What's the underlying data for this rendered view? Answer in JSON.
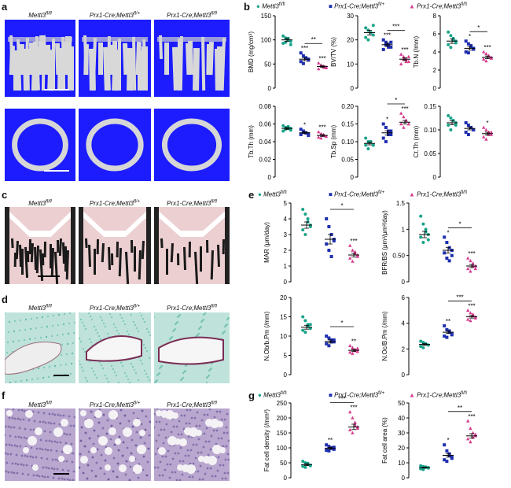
{
  "panel_letters": [
    "a",
    "b",
    "c",
    "d",
    "e",
    "f",
    "g"
  ],
  "genotypes": [
    "Mettl3fl/fl",
    "Prx1-Cre;Mettl3fl/+",
    "Prx1-Cre;Mettl3fl/fl"
  ],
  "genotypes_fmt": [
    {
      "base": "Mettl3",
      "sup": "fl/fl"
    },
    {
      "base": "Prx1-Cre;Mettl3",
      "sup": "fl/+"
    },
    {
      "base": "Prx1-Cre;Mettl3",
      "sup": "fl/fl"
    }
  ],
  "colors": {
    "g1": "#1aa38b",
    "g2": "#1f2fb0",
    "g3": "#d63b8f",
    "microct_bg": "#1c1cff",
    "bone": "#d8d8d8"
  },
  "chart_data": [
    {
      "id": "bmd",
      "panel": "b",
      "type": "scatter",
      "ylabel": "BMD (mg/cm³)",
      "yticks": [
        0,
        50,
        100,
        150
      ],
      "ylim": [
        0,
        150
      ],
      "groups": [
        {
          "values": [
            108,
            104,
            100,
            97,
            93,
            95,
            103,
            90
          ],
          "mean": 100,
          "sem": 3
        },
        {
          "values": [
            73,
            67,
            63,
            58,
            55,
            51,
            62,
            60
          ],
          "mean": 60,
          "sem": 3
        },
        {
          "values": [
            52,
            48,
            45,
            42,
            40,
            47,
            43,
            44
          ],
          "mean": 45,
          "sem": 2
        }
      ],
      "stars": [
        "",
        "***",
        "***"
      ],
      "brackets": [
        {
          "from": 1,
          "to": 2,
          "label": "**"
        }
      ]
    },
    {
      "id": "bvtv",
      "panel": "b",
      "type": "scatter",
      "ylabel": "BV/TV (%)",
      "yticks": [
        0,
        10,
        20,
        30
      ],
      "ylim": [
        0,
        30
      ],
      "groups": [
        {
          "values": [
            25,
            24,
            23,
            22,
            21,
            20,
            23,
            26
          ],
          "mean": 23,
          "sem": 1
        },
        {
          "values": [
            20,
            19,
            18,
            17,
            16,
            18,
            17,
            19
          ],
          "mean": 18,
          "sem": 0.7
        },
        {
          "values": [
            14,
            13,
            12,
            11,
            10,
            12,
            11,
            13
          ],
          "mean": 12,
          "sem": 0.6
        }
      ],
      "stars": [
        "",
        "***",
        "***"
      ],
      "brackets": [
        {
          "from": 1,
          "to": 2,
          "label": "***"
        }
      ]
    },
    {
      "id": "tbn",
      "panel": "b",
      "type": "scatter",
      "ylabel": "Tb.N (/mm)",
      "yticks": [
        0,
        2,
        4,
        6,
        8
      ],
      "ylim": [
        0,
        8
      ],
      "groups": [
        {
          "values": [
            6.2,
            5.8,
            5.5,
            5.2,
            4.8,
            4.5,
            5.3,
            5.0
          ],
          "mean": 5.2,
          "sem": 0.25
        },
        {
          "values": [
            5.2,
            4.9,
            4.6,
            4.3,
            4.0,
            3.9,
            4.7,
            4.4
          ],
          "mean": 4.4,
          "sem": 0.2
        },
        {
          "values": [
            4.0,
            3.8,
            3.6,
            3.4,
            3.2,
            3.0,
            3.5,
            3.3
          ],
          "mean": 3.4,
          "sem": 0.15
        }
      ],
      "stars": [
        "",
        "*",
        "***"
      ],
      "brackets": [
        {
          "from": 1,
          "to": 2,
          "label": "*"
        }
      ]
    },
    {
      "id": "tbth",
      "panel": "b",
      "type": "scatter",
      "ylabel": "Tb.Th (mm)",
      "yticks": [
        0,
        0.02,
        0.04,
        0.06,
        0.08
      ],
      "ylim": [
        0,
        0.08
      ],
      "groups": [
        {
          "values": [
            0.058,
            0.056,
            0.055,
            0.053,
            0.052,
            0.054,
            0.057,
            0.055
          ],
          "mean": 0.055,
          "sem": 0.001
        },
        {
          "values": [
            0.054,
            0.052,
            0.05,
            0.049,
            0.048,
            0.051,
            0.05,
            0.047
          ],
          "mean": 0.05,
          "sem": 0.001
        },
        {
          "values": [
            0.051,
            0.049,
            0.047,
            0.046,
            0.045,
            0.044,
            0.048,
            0.046
          ],
          "mean": 0.047,
          "sem": 0.001
        }
      ],
      "stars": [
        "",
        "*",
        "***"
      ],
      "brackets": []
    },
    {
      "id": "tbsp",
      "panel": "b",
      "type": "scatter",
      "ylabel": "Tb.Sp (mm)",
      "yticks": [
        0,
        0.05,
        0.1,
        0.15,
        0.2
      ],
      "ylim": [
        0,
        0.2
      ],
      "groups": [
        {
          "values": [
            0.11,
            0.1,
            0.1,
            0.09,
            0.09,
            0.08,
            0.1,
            0.09
          ],
          "mean": 0.095,
          "sem": 0.004
        },
        {
          "values": [
            0.15,
            0.14,
            0.13,
            0.12,
            0.11,
            0.1,
            0.12,
            0.13
          ],
          "mean": 0.125,
          "sem": 0.006
        },
        {
          "values": [
            0.18,
            0.17,
            0.16,
            0.15,
            0.15,
            0.14,
            0.16,
            0.15
          ],
          "mean": 0.155,
          "sem": 0.005
        }
      ],
      "stars": [
        "",
        "*",
        "***"
      ],
      "brackets": [
        {
          "from": 1,
          "to": 2,
          "label": "*"
        }
      ]
    },
    {
      "id": "ctth",
      "panel": "b",
      "type": "scatter",
      "ylabel": "Ct.Th (mm)",
      "yticks": [
        0,
        0.05,
        0.1,
        0.15
      ],
      "ylim": [
        0,
        0.15
      ],
      "groups": [
        {
          "values": [
            0.13,
            0.125,
            0.12,
            0.115,
            0.11,
            0.1,
            0.12,
            0.11
          ],
          "mean": 0.115,
          "sem": 0.004
        },
        {
          "values": [
            0.115,
            0.11,
            0.105,
            0.1,
            0.095,
            0.09,
            0.105,
            0.1
          ],
          "mean": 0.103,
          "sem": 0.003
        },
        {
          "values": [
            0.105,
            0.1,
            0.095,
            0.09,
            0.085,
            0.08,
            0.09,
            0.095
          ],
          "mean": 0.092,
          "sem": 0.003
        }
      ],
      "stars": [
        "",
        "",
        "*"
      ],
      "brackets": []
    },
    {
      "id": "mar",
      "panel": "e",
      "type": "scatter",
      "ylabel": "MAR (μm/day)",
      "yticks": [
        0,
        1,
        2,
        3,
        4,
        5
      ],
      "ylim": [
        0,
        5
      ],
      "groups": [
        {
          "values": [
            4.6,
            4.3,
            4.0,
            3.6,
            3.3,
            3.0,
            3.8,
            3.5
          ],
          "mean": 3.6,
          "sem": 0.2
        },
        {
          "values": [
            4.0,
            3.5,
            3.0,
            2.7,
            2.4,
            2.0,
            1.6,
            2.6
          ],
          "mean": 2.7,
          "sem": 0.3
        },
        {
          "values": [
            2.3,
            2.0,
            1.8,
            1.6,
            1.5,
            1.3,
            1.9,
            1.7
          ],
          "mean": 1.7,
          "sem": 0.12
        }
      ],
      "stars": [
        "",
        "",
        "***"
      ],
      "brackets": [
        {
          "from": 1,
          "to": 2,
          "label": "*"
        }
      ]
    },
    {
      "id": "bfrbs",
      "panel": "e",
      "type": "scatter",
      "ylabel": "BFR/BS (μm³/μm²/day)",
      "yticks": [
        0,
        0.5,
        1.0,
        1.5
      ],
      "ylim": [
        0,
        1.5
      ],
      "groups": [
        {
          "values": [
            1.25,
            1.1,
            1.0,
            0.9,
            0.85,
            0.75,
            0.95,
            0.8
          ],
          "mean": 0.9,
          "sem": 0.06
        },
        {
          "values": [
            0.85,
            0.75,
            0.65,
            0.6,
            0.55,
            0.45,
            0.4,
            0.5
          ],
          "mean": 0.6,
          "sem": 0.05
        },
        {
          "values": [
            0.45,
            0.4,
            0.35,
            0.3,
            0.25,
            0.2,
            0.3,
            0.25
          ],
          "mean": 0.3,
          "sem": 0.03
        }
      ],
      "stars": [
        "",
        "*",
        "***"
      ],
      "brackets": [
        {
          "from": 1,
          "to": 2,
          "label": "*"
        }
      ]
    },
    {
      "id": "nobbpm",
      "panel": "e",
      "type": "scatter",
      "ylabel": "N.Ob/b.Pm (/mm)",
      "yticks": [
        0,
        5,
        10,
        15,
        20
      ],
      "ylim": [
        0,
        20
      ],
      "groups": [
        {
          "values": [
            15,
            14,
            13,
            12,
            11.5,
            11,
            12.5,
            13
          ],
          "mean": 12.3,
          "sem": 0.5
        },
        {
          "values": [
            10,
            9.5,
            9,
            8.5,
            8,
            7.5,
            8.5,
            9
          ],
          "mean": 8.6,
          "sem": 0.4
        },
        {
          "values": [
            7.5,
            7,
            6.5,
            6,
            5.8,
            5.5,
            6.2,
            6.8
          ],
          "mean": 6.3,
          "sem": 0.25
        }
      ],
      "stars": [
        "",
        "",
        "**"
      ],
      "brackets": [
        {
          "from": 1,
          "to": 2,
          "label": "*"
        }
      ]
    },
    {
      "id": "nocbpm",
      "panel": "e",
      "type": "scatter",
      "ylabel": "N.Oc/B.Pm (/mm)",
      "yticks": [
        0,
        2,
        4,
        6
      ],
      "ylim": [
        0,
        6
      ],
      "groups": [
        {
          "values": [
            2.6,
            2.5,
            2.4,
            2.3,
            2.2,
            2.1,
            2.4,
            2.3
          ],
          "mean": 2.35,
          "sem": 0.06
        },
        {
          "values": [
            3.8,
            3.5,
            3.3,
            3.1,
            3.0,
            2.9,
            3.4,
            3.2
          ],
          "mean": 3.3,
          "sem": 0.1
        },
        {
          "values": [
            5.0,
            4.8,
            4.6,
            4.4,
            4.3,
            4.2,
            4.7,
            4.5
          ],
          "mean": 4.5,
          "sem": 0.1
        }
      ],
      "stars": [
        "",
        "**",
        "***"
      ],
      "brackets": [
        {
          "from": 1,
          "to": 2,
          "label": "***"
        }
      ]
    },
    {
      "id": "fatdensity",
      "panel": "g",
      "type": "scatter",
      "ylabel": "Fat cell density (/mm²)",
      "yticks": [
        0,
        50,
        100,
        150,
        200,
        250
      ],
      "ylim": [
        0,
        250
      ],
      "groups": [
        {
          "values": [
            55,
            50,
            45,
            42,
            38,
            35,
            48,
            40
          ],
          "mean": 44,
          "sem": 3
        },
        {
          "values": [
            110,
            105,
            100,
            95,
            92,
            90,
            98,
            102
          ],
          "mean": 99,
          "sem": 3
        },
        {
          "values": [
            220,
            200,
            185,
            170,
            160,
            150,
            175,
            165
          ],
          "mean": 170,
          "sem": 9
        }
      ],
      "stars": [
        "",
        "**",
        "***"
      ],
      "brackets": [
        {
          "from": 1,
          "to": 2,
          "label": "***"
        }
      ]
    },
    {
      "id": "fatarea",
      "panel": "g",
      "type": "scatter",
      "ylabel": "Fat cell area (%)",
      "yticks": [
        0,
        10,
        20,
        30,
        40,
        50
      ],
      "ylim": [
        0,
        50
      ],
      "groups": [
        {
          "values": [
            8,
            7.5,
            7,
            6.5,
            6,
            5.5,
            7.2,
            6.8
          ],
          "mean": 6.8,
          "sem": 0.3
        },
        {
          "values": [
            22,
            18,
            16,
            14,
            12,
            11,
            15,
            13
          ],
          "mean": 15,
          "sem": 1.2
        },
        {
          "values": [
            38,
            33,
            30,
            28,
            26,
            24,
            27,
            29
          ],
          "mean": 28,
          "sem": 1.5
        }
      ],
      "stars": [
        "",
        "*",
        "***"
      ],
      "brackets": [
        {
          "from": 1,
          "to": 2,
          "label": "**"
        }
      ]
    }
  ]
}
